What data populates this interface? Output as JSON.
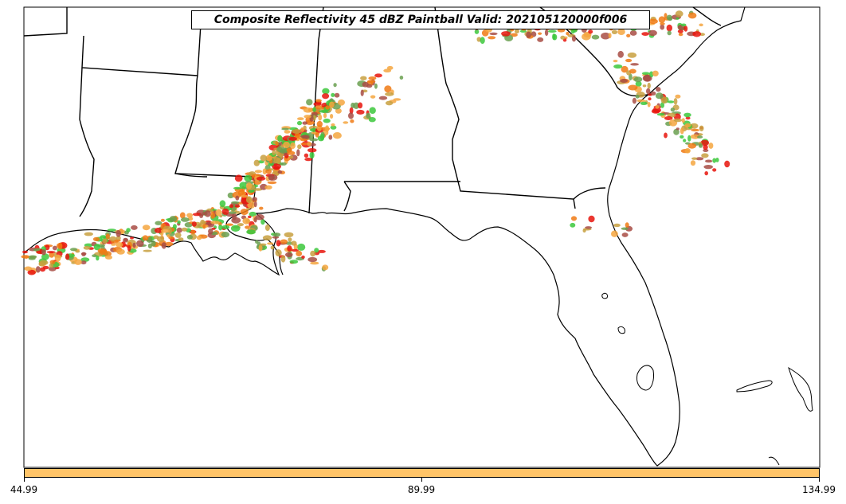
{
  "title": "Composite Reflectivity 45 dBZ Paintball Valid: 202105120000f006",
  "colors": {
    "paintball": [
      "#e8140c",
      "#f07a14",
      "#f4a640",
      "#3cc83c",
      "#6aa050",
      "#a84c44",
      "#c8a040"
    ],
    "colorbar": "#ffc468",
    "coastline": "#000000",
    "background": "#ffffff"
  },
  "colorbar": {
    "ticks": [
      "44.99",
      "89.99",
      "134.99"
    ]
  },
  "regions": [
    "Louisiana",
    "Mississippi",
    "Alabama",
    "Georgia",
    "South Carolina",
    "Florida",
    "Gulf of Mexico",
    "Atlantic Ocean"
  ]
}
